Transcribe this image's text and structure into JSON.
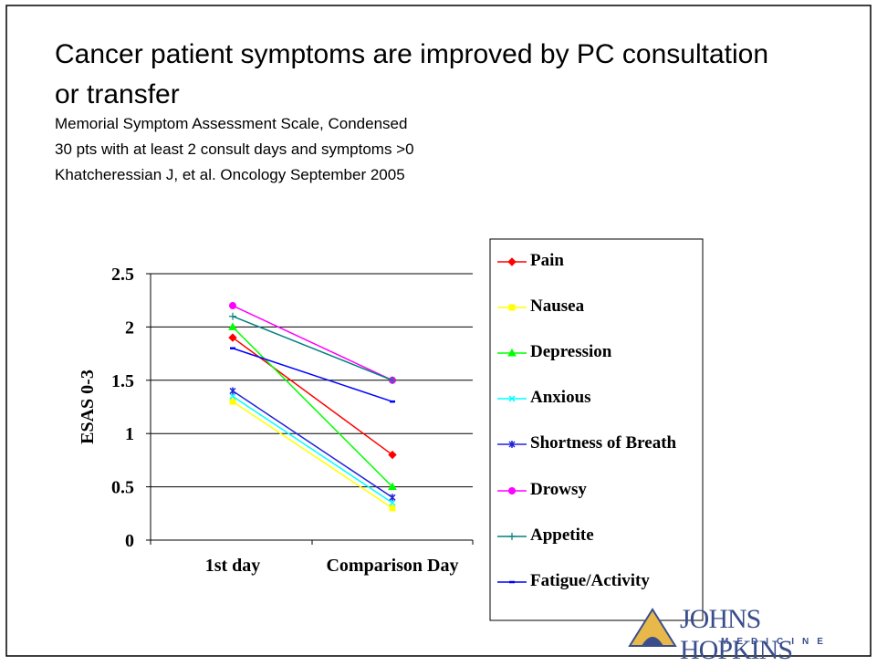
{
  "slide": {
    "title": "Cancer patient symptoms are improved by PC consultation or transfer",
    "subtitle_lines": [
      "Memorial Symptom Assessment Scale, Condensed",
      "30 pts with at least 2 consult days and symptoms >0",
      "Khatcheressian J, et al. Oncology September 2005"
    ],
    "logo": {
      "name": "JOHNS HOPKINS",
      "unit": "MEDICINE"
    }
  },
  "chart_data": {
    "type": "line",
    "ylabel": "ESAS 0-3",
    "categories": [
      "1st day",
      "Comparison Day"
    ],
    "ylim": [
      0,
      2.5
    ],
    "yticks": [
      0,
      0.5,
      1,
      1.5,
      2,
      2.5
    ],
    "grid": true,
    "series": [
      {
        "name": "Pain",
        "color": "#ff0000",
        "marker": "diamond",
        "values": [
          1.9,
          0.8
        ]
      },
      {
        "name": "Nausea",
        "color": "#ffff00",
        "marker": "square",
        "values": [
          1.3,
          0.3
        ]
      },
      {
        "name": "Depression",
        "color": "#00ff00",
        "marker": "triangle",
        "values": [
          2.0,
          0.5
        ]
      },
      {
        "name": "Anxious",
        "color": "#00ffff",
        "marker": "x",
        "values": [
          1.35,
          0.35
        ]
      },
      {
        "name": "Shortness of Breath",
        "color": "#2222dd",
        "marker": "star",
        "values": [
          1.4,
          0.4
        ]
      },
      {
        "name": "Drowsy",
        "color": "#ff00ff",
        "marker": "circle",
        "values": [
          2.2,
          1.5
        ]
      },
      {
        "name": "Appetite",
        "color": "#008080",
        "marker": "plus",
        "values": [
          2.1,
          1.5
        ]
      },
      {
        "name": "Fatigue/Activity",
        "color": "#0000ff",
        "marker": "dash",
        "values": [
          1.8,
          1.3
        ]
      }
    ]
  }
}
